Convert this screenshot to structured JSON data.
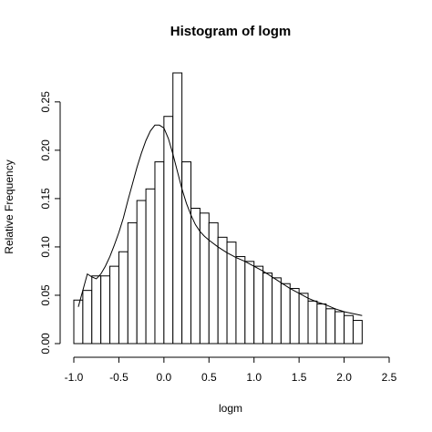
{
  "chart_data": {
    "type": "bar",
    "title": "Histogram of logm",
    "xlabel": "logm",
    "ylabel": "Relative Frequency",
    "xlim": [
      -1.0,
      2.5
    ],
    "ylim": [
      0,
      0.28
    ],
    "xticks": [
      -1.0,
      -0.5,
      0.0,
      0.5,
      1.0,
      1.5,
      2.0,
      2.5
    ],
    "xtick_labels": [
      "-1.0",
      "-0.5",
      "0.0",
      "0.5",
      "1.0",
      "1.5",
      "2.0",
      "2.5"
    ],
    "yticks": [
      0.0,
      0.05,
      0.1,
      0.15,
      0.2,
      0.25
    ],
    "ytick_labels": [
      "0.00",
      "0.05",
      "0.10",
      "0.15",
      "0.20",
      "0.25"
    ],
    "bin_width": 0.1,
    "bins_start": -1.0,
    "bins_end": 2.2,
    "values": [
      0.045,
      0.055,
      0.07,
      0.07,
      0.08,
      0.095,
      0.125,
      0.148,
      0.16,
      0.188,
      0.235,
      0.28,
      0.188,
      0.14,
      0.135,
      0.125,
      0.11,
      0.105,
      0.09,
      0.085,
      0.08,
      0.073,
      0.068,
      0.062,
      0.057,
      0.052,
      0.044,
      0.041,
      0.036,
      0.033,
      0.029,
      0.024
    ],
    "density_curve": {
      "x": [
        -0.95,
        -0.9,
        -0.85,
        -0.8,
        -0.75,
        -0.7,
        -0.65,
        -0.6,
        -0.55,
        -0.5,
        -0.45,
        -0.4,
        -0.35,
        -0.3,
        -0.25,
        -0.2,
        -0.15,
        -0.1,
        -0.05,
        0.0,
        0.05,
        0.1,
        0.15,
        0.2,
        0.25,
        0.3,
        0.35,
        0.4,
        0.45,
        0.5,
        0.6,
        0.7,
        0.8,
        0.9,
        1.0,
        1.1,
        1.2,
        1.3,
        1.4,
        1.5,
        1.6,
        1.7,
        1.8,
        1.9,
        2.0,
        2.1,
        2.2
      ],
      "y": [
        0.038,
        0.055,
        0.072,
        0.069,
        0.067,
        0.072,
        0.08,
        0.09,
        0.102,
        0.115,
        0.13,
        0.148,
        0.165,
        0.182,
        0.197,
        0.21,
        0.22,
        0.226,
        0.226,
        0.223,
        0.212,
        0.196,
        0.178,
        0.16,
        0.145,
        0.133,
        0.123,
        0.116,
        0.111,
        0.107,
        0.1,
        0.094,
        0.089,
        0.085,
        0.08,
        0.075,
        0.069,
        0.063,
        0.057,
        0.052,
        0.047,
        0.043,
        0.04,
        0.036,
        0.033,
        0.031,
        0.029
      ]
    }
  }
}
